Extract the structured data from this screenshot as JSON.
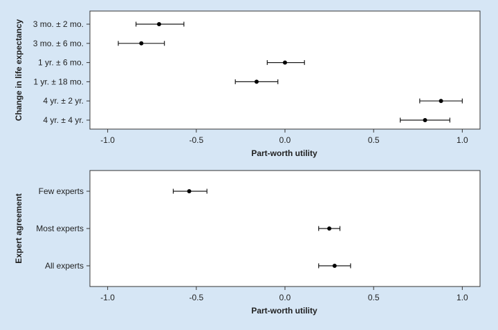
{
  "chart_data": [
    {
      "type": "scatter",
      "title": "",
      "xlabel": "Part-worth utility",
      "ylabel": "Change in life expectancy",
      "xlim": [
        -1.1,
        1.1
      ],
      "xticks": [
        "-1.0",
        "-0.5",
        "0.0",
        "0.5",
        "1.0"
      ],
      "xtick_values": [
        -1.0,
        -0.5,
        0.0,
        0.5,
        1.0
      ],
      "grid": false,
      "error_bars": true,
      "categories": [
        "3 mo. ± 2 mo.",
        "3 mo. ± 6 mo.",
        "1 yr. ± 6 mo.",
        "1 yr. ± 18 mo.",
        "4 yr. ± 2 yr.",
        "4 yr. ± 4 yr."
      ],
      "values": [
        -0.71,
        -0.81,
        0.0,
        -0.16,
        0.88,
        0.79
      ],
      "lower": [
        -0.84,
        -0.94,
        -0.1,
        -0.28,
        0.76,
        0.65
      ],
      "upper": [
        -0.57,
        -0.68,
        0.11,
        -0.04,
        1.0,
        0.93
      ]
    },
    {
      "type": "scatter",
      "title": "",
      "xlabel": "Part-worth utility",
      "ylabel": "Expert agreement",
      "xlim": [
        -1.1,
        1.1
      ],
      "xticks": [
        "-1.0",
        "-0.5",
        "0.0",
        "0.5",
        "1.0"
      ],
      "xtick_values": [
        -1.0,
        -0.5,
        0.0,
        0.5,
        1.0
      ],
      "grid": false,
      "error_bars": true,
      "categories": [
        "Few experts",
        "Most experts",
        "All experts"
      ],
      "values": [
        -0.54,
        0.25,
        0.28
      ],
      "lower": [
        -0.63,
        0.19,
        0.19
      ],
      "upper": [
        -0.44,
        0.31,
        0.37
      ]
    }
  ]
}
